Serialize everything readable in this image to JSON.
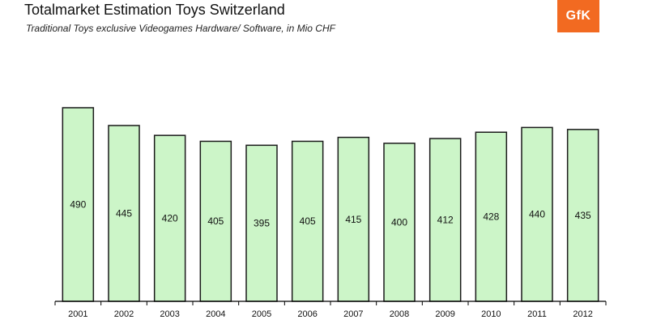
{
  "header": {
    "title": "Totalmarket Estimation Toys Switzerland",
    "subtitle": "Traditional Toys exclusive Videogames Hardware/ Software, in Mio CHF"
  },
  "logo": {
    "text": "GfK",
    "color": "#f26a21"
  },
  "colors": {
    "bar_fill": "#ccf5c8",
    "bar_stroke": "#1a1a1a",
    "axis": "#000000"
  },
  "chart_data": {
    "type": "bar",
    "title": "Totalmarket Estimation Toys Switzerland",
    "subtitle": "Traditional Toys exclusive Videogames Hardware/ Software, in Mio CHF",
    "categories": [
      "2001",
      "2002",
      "2003",
      "2004",
      "2005",
      "2006",
      "2007",
      "2008",
      "2009",
      "2010",
      "2011",
      "2012"
    ],
    "values": [
      490,
      445,
      420,
      405,
      395,
      405,
      415,
      400,
      412,
      428,
      440,
      435
    ],
    "ylim": [
      0,
      490
    ],
    "grid": false,
    "legend": "none",
    "data_labels": true
  }
}
